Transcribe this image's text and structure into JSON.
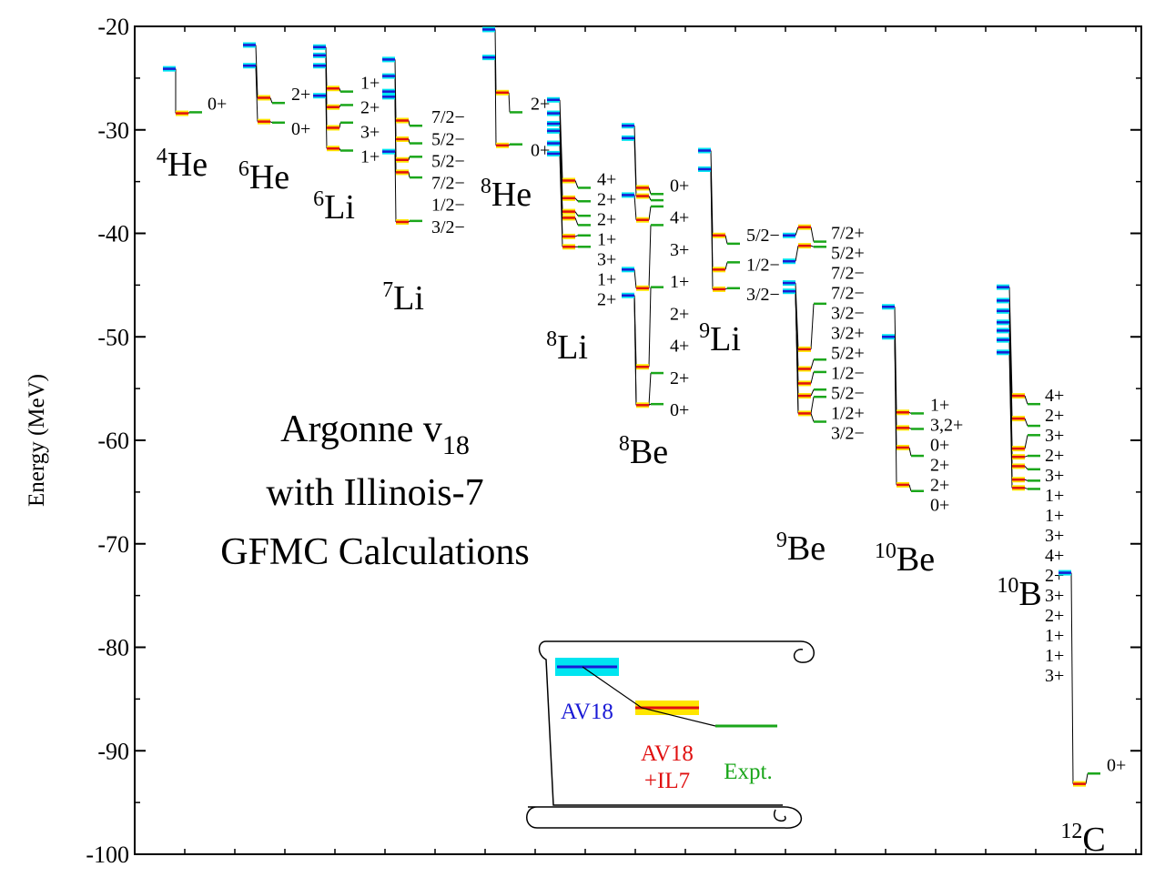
{
  "colors": {
    "av18": "#1a1ad6",
    "av18_band": "#00e5f0",
    "il7": "#e01010",
    "il7_band": "#ffe600",
    "expt": "#1aa61a",
    "expt_band": "#9be69b",
    "magenta": "#e040e0"
  },
  "annotation": {
    "line1": "Argonne v",
    "line1_sub": "18",
    "line2": "with Illinois-7",
    "line3": "GFMC Calculations"
  },
  "legend": {
    "av18": "AV18",
    "il7_line1": "AV18",
    "il7_line2": "+IL7",
    "expt": "Expt."
  },
  "chart_data": {
    "type": "level-scheme",
    "ylabel": "Energy (MeV)",
    "ylim": [
      -100,
      -20
    ],
    "yticks": [
      -20,
      -30,
      -40,
      -50,
      -60,
      -70,
      -80,
      -90,
      -100
    ],
    "nuclei": [
      {
        "mass": "4",
        "symbol": "He",
        "av18": [
          -24.1
        ],
        "il7": [
          -28.4
        ],
        "expt": [
          -28.3
        ],
        "labels": [
          "0+"
        ]
      },
      {
        "mass": "6",
        "symbol": "He",
        "av18": [
          -21.8,
          -23.8
        ],
        "il7": [
          -26.9,
          -29.2
        ],
        "expt": [
          -27.4,
          -29.3
        ],
        "labels": [
          "2+",
          "0+"
        ]
      },
      {
        "mass": "6",
        "symbol": "Li",
        "av18": [
          -22.0,
          -22.8,
          -23.8,
          -26.7
        ],
        "il7": [
          -26.0,
          -27.8,
          -29.8,
          -31.8
        ],
        "expt": [
          -26.3,
          -27.6,
          -29.3,
          -32.0
        ],
        "labels": [
          "1+",
          "2+",
          "3+",
          "1+"
        ]
      },
      {
        "mass": "7",
        "symbol": "Li",
        "av18": [
          -23.2,
          -24.8,
          -26.3,
          -26.8,
          -32.1
        ],
        "il7": [
          -29.1,
          -30.9,
          -32.9,
          -34.1,
          -38.9
        ],
        "expt": [
          -29.6,
          -31.3,
          -32.6,
          -34.6,
          -38.8
        ],
        "labels": [
          "7/2−",
          "5/2−",
          "5/2−",
          "7/2−",
          "1/2−",
          "3/2−"
        ]
      },
      {
        "mass": "8",
        "symbol": "He",
        "av18": [
          -20.3,
          -23.0
        ],
        "il7": [
          -26.4,
          -31.5
        ],
        "expt": [
          -28.3,
          -31.4
        ],
        "labels": [
          "2+",
          "0+"
        ]
      },
      {
        "mass": "8",
        "symbol": "Li",
        "av18": [
          -27.1,
          -28.4,
          -29.4,
          -30.1,
          -31.3,
          -32.3
        ],
        "il7": [
          -34.9,
          -36.6,
          -37.9,
          -38.5,
          -40.3,
          -41.3
        ],
        "expt": [
          -35.6,
          -36.9,
          -38.3,
          -39.2,
          -40.2,
          -41.3
        ],
        "labels": [
          "4+",
          "2+",
          "2+",
          "1+",
          "3+",
          "1+",
          "2+"
        ]
      },
      {
        "mass": "8",
        "symbol": "Be",
        "av18": [
          -29.6,
          -30.8,
          -36.3,
          -43.5,
          -46.0
        ],
        "il7": [
          -35.6,
          -36.4,
          -38.7,
          -45.3,
          -52.9,
          -56.6
        ],
        "expt": [
          -36.2,
          -36.8,
          -37.4,
          -39.2,
          -45.2,
          -53.5,
          -56.5
        ],
        "labels": [
          "0+",
          "4+",
          "3+",
          "1+",
          "2+",
          "4+",
          "2+",
          "0+"
        ]
      },
      {
        "mass": "9",
        "symbol": "Li",
        "av18": [
          -32.0,
          -33.8
        ],
        "il7": [
          -40.2,
          -43.5,
          -45.4
        ],
        "expt": [
          -41.0,
          -42.8,
          -45.3
        ],
        "labels": [
          "5/2−",
          "1/2−",
          "3/2−"
        ]
      },
      {
        "mass": "9",
        "symbol": "Be",
        "av18": [
          -40.2,
          -42.7,
          -44.8,
          -45.6
        ],
        "il7": [
          -39.4,
          -41.2,
          -51.2,
          -53.1,
          -54.5,
          -55.7,
          -57.4
        ],
        "expt": [
          -40.8,
          -41.3,
          -46.8,
          -52.2,
          -53.4,
          -55.1,
          -55.8,
          -58.2
        ],
        "labels": [
          "7/2+",
          "5/2+",
          "7/2−",
          "7/2−",
          "3/2−",
          "3/2+",
          "5/2+",
          "1/2−",
          "5/2−",
          "1/2+",
          "3/2−"
        ]
      },
      {
        "mass": "10",
        "symbol": "Be",
        "av18": [
          -47.1,
          -50.0
        ],
        "il7": [
          -57.3,
          -58.8,
          -60.7,
          -64.3
        ],
        "expt": [
          -57.4,
          -58.9,
          -61.5,
          -64.9
        ],
        "labels": [
          "1+",
          "3,2+",
          "0+",
          "2+",
          "2+",
          "0+"
        ]
      },
      {
        "mass": "10",
        "symbol": "B",
        "av18": [
          -45.2,
          -46.5,
          -47.5,
          -48.6,
          -49.4,
          -50.3,
          -51.5
        ],
        "il7": [
          -55.7,
          -57.9,
          -60.8,
          -61.6,
          -62.5,
          -63.8,
          -64.6
        ],
        "expt": [
          -56.5,
          -58.6,
          -59.5,
          -61.5,
          -62.8,
          -63.9,
          -64.7
        ],
        "labels": [
          "4+",
          "2+",
          "3+",
          "2+",
          "3+",
          "1+",
          "1+",
          "3+",
          "4+",
          "2+",
          "3+",
          "2+",
          "1+",
          "1+",
          "3+"
        ]
      },
      {
        "mass": "12",
        "symbol": "C",
        "av18": [
          -72.8
        ],
        "il7": [
          -93.2
        ],
        "expt": [
          -92.2
        ],
        "labels": [
          "0+"
        ]
      }
    ]
  }
}
